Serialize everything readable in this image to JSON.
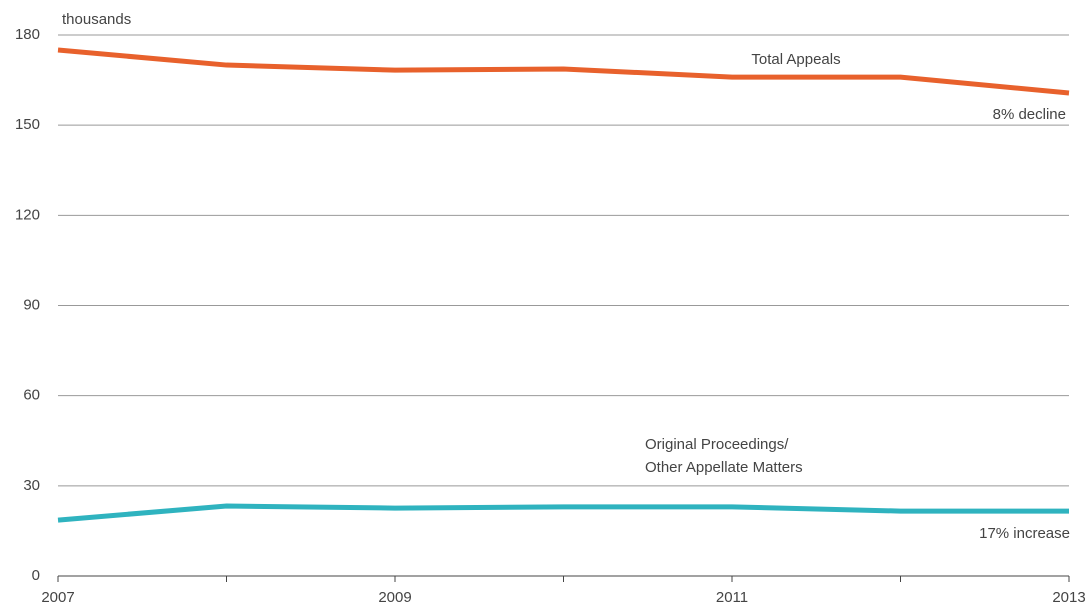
{
  "chart_data": {
    "type": "line",
    "x": [
      2007,
      2008,
      2009,
      2010,
      2011,
      2012,
      2013
    ],
    "xlim": [
      2007,
      2013
    ],
    "xticks": [
      2007,
      2009,
      2011,
      2013
    ],
    "ylim": [
      0,
      180
    ],
    "yticks": [
      0,
      30,
      60,
      90,
      120,
      150,
      180
    ],
    "grid": true,
    "series": [
      {
        "color": "#e8612c",
        "values": [
          175,
          170,
          168.3,
          168.7,
          166,
          166,
          160.7
        ]
      },
      {
        "color": "#2fb3bf",
        "values": [
          18.6,
          23.3,
          22.6,
          23,
          23,
          21.6,
          21.6
        ]
      }
    ],
    "annotations": [
      "thousands",
      "Total Appeals",
      "8% decline",
      "Original Proceedings/",
      "Other Appellate Matters",
      "17% increase"
    ]
  }
}
